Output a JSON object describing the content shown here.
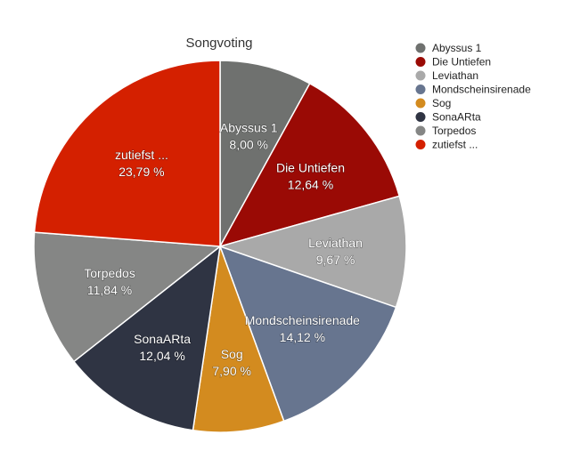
{
  "chart_data": {
    "type": "pie",
    "title": "Songvoting",
    "legend_position": "top-right",
    "slices": [
      {
        "label": "Abyssus 1",
        "legend": "Abyssus 1",
        "value": 8.0,
        "value_text": "8,00 %",
        "color": "#6f716f"
      },
      {
        "label": "Die Untiefen",
        "legend": "Die Untiefen",
        "value": 12.64,
        "value_text": "12,64 %",
        "color": "#9a0a05"
      },
      {
        "label": "Leviathan",
        "legend": "Leviathan",
        "value": 9.67,
        "value_text": "9,67 %",
        "color": "#a9a9a9"
      },
      {
        "label": "Mondscheinsirenade",
        "legend": "Mondscheinsirenade",
        "value": 14.12,
        "value_text": "14,12 %",
        "color": "#67758f"
      },
      {
        "label": "Sog",
        "legend": "Sog",
        "value": 7.9,
        "value_text": "7,90 %",
        "color": "#d38b1f"
      },
      {
        "label": "SonaARta",
        "legend": "SonaARta",
        "value": 12.04,
        "value_text": "12,04 %",
        "color": "#2f3443"
      },
      {
        "label": "Torpedos",
        "legend": "Torpedos",
        "value": 11.84,
        "value_text": "11,84 %",
        "color": "#858685"
      },
      {
        "label": "zutiefst ...",
        "legend": "zutiefst ...",
        "value": 23.79,
        "value_text": "23,79 %",
        "color": "#d42000"
      }
    ]
  }
}
